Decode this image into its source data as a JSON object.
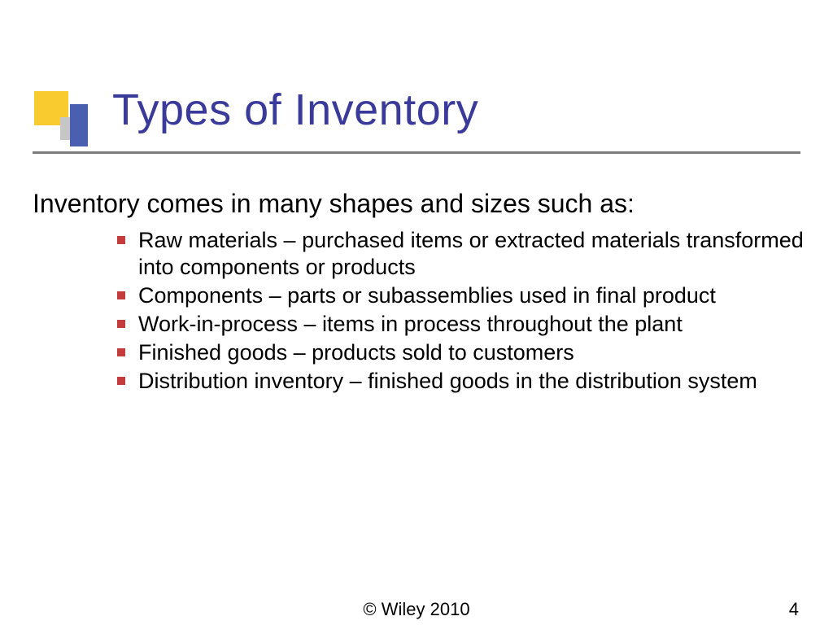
{
  "colors": {
    "title": "#3a3a9a",
    "logo_yellow": "#f9cb2f",
    "logo_grey": "#c6c6c6",
    "logo_blue": "#4a5fb0",
    "underline": "#7d7d7d",
    "bullet": "#c33b3b",
    "body_text": "#000000",
    "intro_text": "#000000",
    "background": "#ffffff"
  },
  "typography": {
    "title_fontsize": 54,
    "intro_fontsize": 32,
    "bullet_fontsize": 27,
    "footer_fontsize": 22,
    "font_family": "Verdana"
  },
  "title": "Types of Inventory",
  "intro": "Inventory comes in many shapes and sizes such as:",
  "bullets": [
    "Raw materials – purchased items or extracted materials transformed into components or products",
    "Components – parts or subassemblies used in final product",
    "Work-in-process – items in process throughout the plant",
    "Finished goods – products sold to customers",
    "Distribution inventory – finished goods in the distribution system"
  ],
  "footer": {
    "copyright": "© Wiley 2010",
    "page_number": "4"
  }
}
